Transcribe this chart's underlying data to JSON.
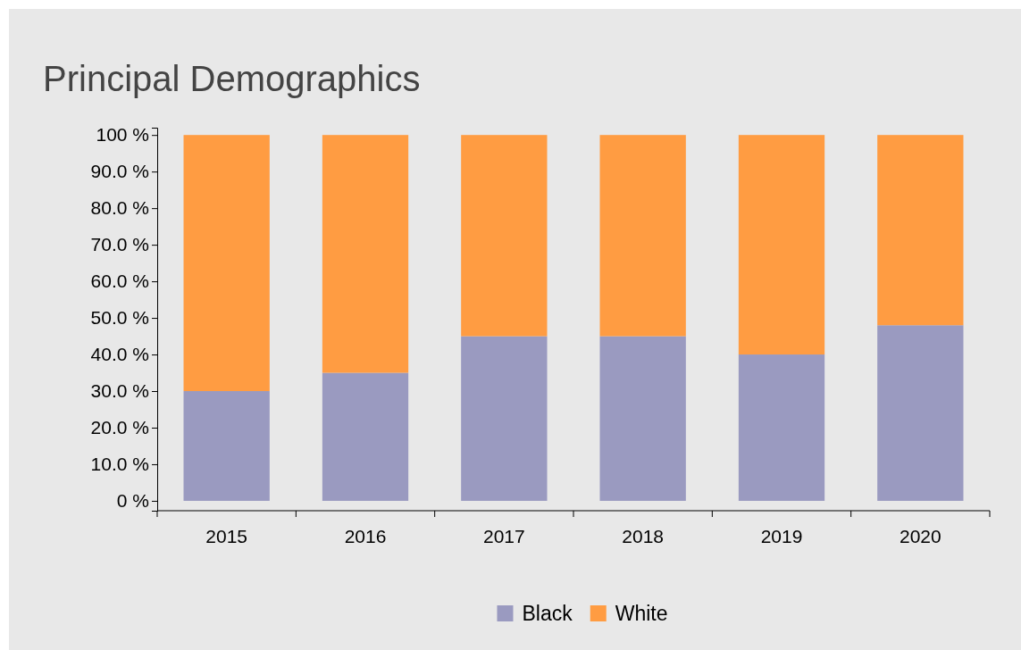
{
  "chart_data": {
    "type": "bar",
    "title": "Principal Demographics",
    "stacked": true,
    "categories": [
      "2015",
      "2016",
      "2017",
      "2018",
      "2019",
      "2020"
    ],
    "series": [
      {
        "name": "Black",
        "color": "#9a9ac0",
        "values": [
          30,
          35,
          45,
          45,
          40,
          48
        ]
      },
      {
        "name": "White",
        "color": "#ff9c42",
        "values": [
          70,
          65,
          55,
          55,
          60,
          52
        ]
      }
    ],
    "ylim": [
      -2.7,
      102
    ],
    "yticks": [
      {
        "value": 0,
        "label": "0 %"
      },
      {
        "value": 10,
        "label": "10.0 %"
      },
      {
        "value": 20,
        "label": "20.0 %"
      },
      {
        "value": 30,
        "label": "30.0 %"
      },
      {
        "value": 40,
        "label": "40.0 %"
      },
      {
        "value": 50,
        "label": "50.0 %"
      },
      {
        "value": 60,
        "label": "60.0 %"
      },
      {
        "value": 70,
        "label": "70.0 %"
      },
      {
        "value": 80,
        "label": "80.0 %"
      },
      {
        "value": 90,
        "label": "90.0 %"
      },
      {
        "value": 100,
        "label": "100 %"
      }
    ],
    "grid": false,
    "legend": "bottom"
  }
}
